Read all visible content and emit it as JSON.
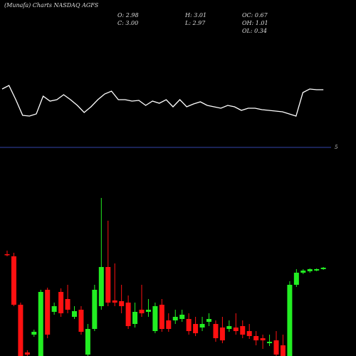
{
  "chart_data": [
    {
      "type": "candlestick",
      "title": "(Munafa) Charts NASDAQ AGFS",
      "stats": [
        "O: 2.98",
        "C: 3.00",
        "H: 3.01",
        "L: 2.97",
        "OC: 0.67",
        "OH: 1.01",
        "OL: 0.34"
      ],
      "up_color": "#22ee22",
      "down_color": "#ff1111",
      "ylim": [
        1.76,
        4.06
      ],
      "open": [
        3.19,
        3.16,
        2.48,
        1.81,
        2.06,
        1.76,
        2.69,
        2.38,
        2.66,
        2.56,
        2.31,
        2.41,
        1.78,
        2.14,
        2.46,
        3.01,
        2.54,
        2.53,
        2.51,
        2.21,
        2.41,
        2.38,
        2.11,
        2.48,
        2.26,
        2.26,
        2.28,
        2.28,
        2.21,
        2.16,
        2.24,
        2.21,
        2.16,
        2.14,
        2.16,
        2.18,
        2.11,
        2.04,
        2.01,
        1.94,
        1.98,
        1.91,
        1.76,
        2.76,
        2.93,
        2.95,
        2.96,
        2.98
      ],
      "high": [
        3.24,
        3.21,
        2.51,
        1.84,
        2.13,
        2.69,
        2.72,
        2.51,
        2.71,
        2.76,
        2.46,
        2.46,
        2.21,
        2.76,
        3.98,
        3.66,
        3.06,
        2.76,
        2.61,
        2.51,
        2.76,
        2.56,
        2.51,
        2.56,
        2.36,
        2.41,
        2.41,
        2.36,
        2.31,
        2.31,
        2.36,
        2.26,
        2.31,
        2.26,
        2.36,
        2.26,
        2.21,
        2.11,
        2.06,
        2.06,
        2.11,
        2.06,
        2.81,
        2.98,
        2.98,
        2.99,
        2.99,
        3.01
      ],
      "low": [
        3.16,
        2.46,
        1.76,
        1.76,
        2.03,
        1.76,
        2.01,
        2.34,
        2.31,
        2.36,
        2.28,
        2.06,
        1.76,
        2.11,
        2.41,
        2.46,
        2.46,
        2.36,
        2.14,
        2.16,
        2.31,
        2.31,
        2.08,
        2.1,
        2.1,
        2.21,
        2.24,
        2.06,
        2.04,
        2.11,
        2.18,
        1.96,
        1.94,
        2.1,
        2.06,
        2.01,
        2.0,
        1.91,
        1.86,
        1.9,
        1.76,
        1.76,
        1.76,
        2.73,
        2.91,
        2.93,
        2.95,
        2.97
      ],
      "close": [
        3.18,
        2.48,
        1.76,
        1.78,
        2.1,
        2.66,
        2.06,
        2.46,
        2.36,
        2.41,
        2.39,
        2.1,
        2.14,
        2.69,
        3.01,
        2.51,
        2.51,
        2.46,
        2.18,
        2.38,
        2.36,
        2.41,
        2.46,
        2.14,
        2.14,
        2.31,
        2.34,
        2.11,
        2.08,
        2.21,
        2.28,
        2.01,
        1.98,
        2.18,
        2.11,
        2.06,
        2.04,
        1.98,
        1.98,
        1.96,
        1.78,
        1.76,
        2.76,
        2.93,
        2.96,
        2.98,
        2.98,
        3.0
      ]
    },
    {
      "type": "line",
      "color": "#ffffff",
      "ylim": [
        5,
        15
      ],
      "reference_line": 5,
      "reference_color": "#3344aa",
      "values": [
        13.2,
        13.7,
        11.7,
        9.5,
        9.4,
        9.7,
        12.2,
        11.5,
        11.7,
        12.4,
        11.7,
        10.9,
        9.9,
        10.7,
        11.7,
        12.5,
        12.9,
        11.7,
        11.7,
        11.5,
        11.6,
        10.9,
        11.5,
        11.2,
        11.7,
        10.7,
        11.7,
        10.7,
        11.1,
        11.4,
        10.9,
        10.7,
        10.5,
        10.9,
        10.7,
        10.2,
        10.5,
        10.5,
        10.3,
        10.2,
        10.1,
        10.0,
        9.7,
        9.4,
        12.7,
        13.2,
        13.1,
        13.1
      ]
    }
  ]
}
